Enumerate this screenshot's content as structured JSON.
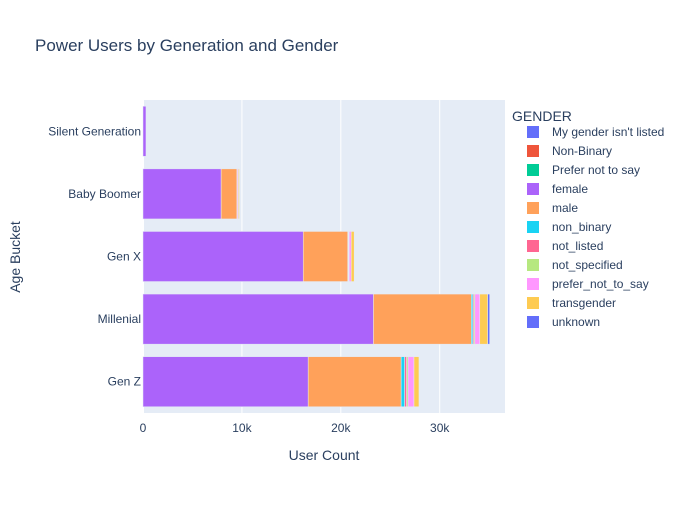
{
  "chart_data": {
    "type": "bar",
    "orientation": "horizontal",
    "barmode": "stack",
    "title": "Power Users by Generation and Gender",
    "xlabel": "User Count",
    "ylabel": "Age Bucket",
    "xlim": [
      0,
      36600
    ],
    "x_ticks": [
      0,
      10000,
      20000,
      30000
    ],
    "x_tick_labels": [
      "0",
      "10k",
      "20k",
      "30k"
    ],
    "grid": true,
    "legend_title": "GENDER",
    "legend_position": "right",
    "categories": [
      "Silent Generation",
      "Baby Boomer",
      "Gen X",
      "Millenial",
      "Gen Z"
    ],
    "series": [
      {
        "name": "My gender isn't listed",
        "color": "#636efa",
        "values": [
          0,
          0,
          0,
          0,
          0
        ]
      },
      {
        "name": "Non-Binary",
        "color": "#EF553B",
        "values": [
          0,
          0,
          0,
          0,
          0
        ]
      },
      {
        "name": "Prefer not to say",
        "color": "#00cc96",
        "values": [
          0,
          0,
          0,
          0,
          0
        ]
      },
      {
        "name": "female",
        "color": "#ab63fa",
        "values": [
          300,
          7900,
          16200,
          23300,
          16700
        ]
      },
      {
        "name": "male",
        "color": "#FFA15A",
        "values": [
          0,
          1600,
          4500,
          9900,
          9400
        ]
      },
      {
        "name": "non_binary",
        "color": "#19d3f3",
        "values": [
          0,
          0,
          50,
          150,
          350
        ]
      },
      {
        "name": "not_listed",
        "color": "#FF6692",
        "values": [
          0,
          0,
          50,
          100,
          200
        ]
      },
      {
        "name": "not_specified",
        "color": "#B6E880",
        "values": [
          0,
          50,
          50,
          100,
          150
        ]
      },
      {
        "name": "prefer_not_to_say",
        "color": "#FF97FF",
        "values": [
          0,
          100,
          200,
          500,
          600
        ]
      },
      {
        "name": "transgender",
        "color": "#FECB52",
        "values": [
          0,
          100,
          300,
          800,
          500
        ]
      },
      {
        "name": "unknown",
        "color": "#636efa",
        "values": [
          0,
          0,
          0,
          200,
          0
        ]
      }
    ]
  }
}
